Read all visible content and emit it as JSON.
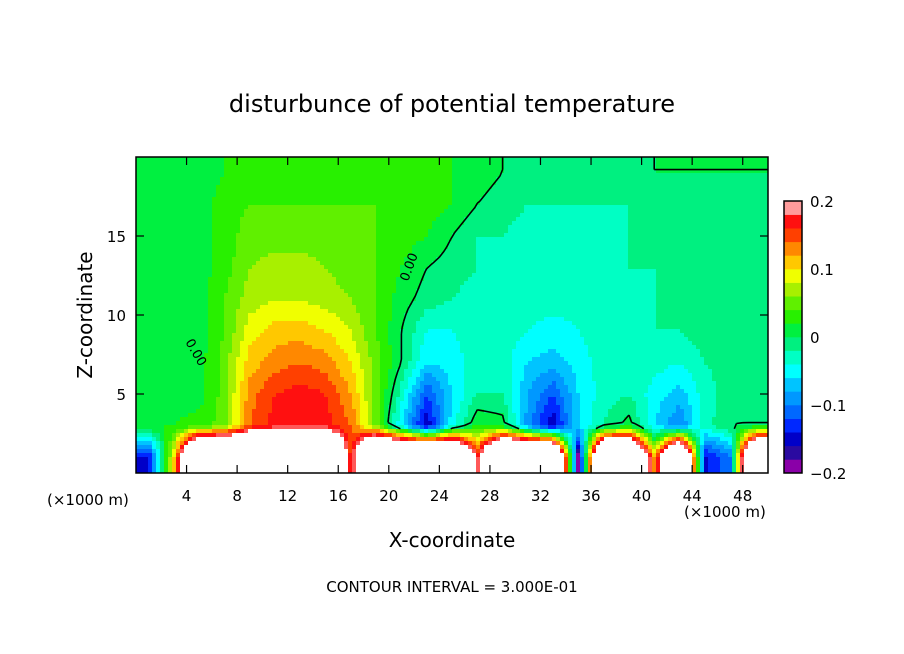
{
  "chart_data": {
    "type": "heatmap",
    "title": "disturbunce of potential temperature",
    "xlabel": "X-coordinate",
    "ylabel": "Z-coordinate",
    "x_unit": "(×1000 m)",
    "y_unit": "(×1000 m)",
    "xlim": [
      0,
      50
    ],
    "ylim": [
      0,
      20
    ],
    "x_ticks": [
      4,
      8,
      12,
      16,
      20,
      24,
      28,
      32,
      36,
      40,
      44,
      48
    ],
    "x_tick_labels": [
      "4",
      "8",
      "12",
      "16",
      "20",
      "24",
      "28",
      "32",
      "36",
      "40",
      "44",
      "48"
    ],
    "y_ticks": [
      5,
      10,
      15
    ],
    "y_tick_labels": [
      "5",
      "10",
      "15"
    ],
    "footer": "CONTOUR INTERVAL = 3.000E-01",
    "contour_line_label": "0.00",
    "colorbar": {
      "min": -0.2,
      "max": 0.2,
      "step": 0.02,
      "tick_values": [
        0.2,
        0.1,
        0,
        -0.1,
        -0.2
      ],
      "tick_labels": [
        "0.2",
        "0.1",
        "0",
        "−0.1",
        "−0.2"
      ],
      "colors": [
        "#8a00a8",
        "#2a0aa0",
        "#0000c8",
        "#0028ff",
        "#0068ff",
        "#0098ff",
        "#00c4ff",
        "#00ffff",
        "#00ffc4",
        "#00f080",
        "#00f040",
        "#28f000",
        "#60f000",
        "#a8f000",
        "#f0ff00",
        "#ffc800",
        "#ff8800",
        "#ff4000",
        "#ff1010",
        "#ff5858",
        "#ff9c9c"
      ]
    },
    "grid_x": [
      1,
      3,
      5,
      7,
      9,
      11,
      13,
      15,
      17,
      19,
      21,
      23,
      25,
      27,
      29,
      31,
      33,
      35,
      37,
      39,
      41,
      43,
      45,
      47,
      49
    ],
    "grid_z": [
      19,
      17,
      15,
      13,
      11,
      9,
      7,
      5,
      3,
      1
    ],
    "values": [
      [
        0.01,
        0.01,
        0.01,
        0.02,
        0.03,
        0.03,
        0.03,
        0.03,
        0.03,
        0.03,
        0.03,
        0.03,
        0.02,
        0.01,
        0.0,
        -0.01,
        -0.01,
        -0.01,
        -0.01,
        -0.01,
        0,
        0,
        0,
        0,
        0
      ],
      [
        0.01,
        0.01,
        0.01,
        0.03,
        0.04,
        0.04,
        0.04,
        0.04,
        0.04,
        0.04,
        0.03,
        0.03,
        0.02,
        0.0,
        -0.01,
        -0.02,
        -0.02,
        -0.02,
        -0.02,
        -0.02,
        -0.01,
        -0.01,
        -0.01,
        -0.01,
        -0.01
      ],
      [
        0.01,
        0.01,
        0.01,
        0.03,
        0.05,
        0.05,
        0.05,
        0.05,
        0.05,
        0.04,
        0.03,
        0.02,
        0.0,
        -0.02,
        -0.02,
        -0.03,
        -0.03,
        -0.03,
        -0.03,
        -0.02,
        -0.02,
        -0.01,
        -0.01,
        -0.01,
        -0.01
      ],
      [
        0.01,
        0.01,
        0.01,
        0.03,
        0.06,
        0.07,
        0.07,
        0.06,
        0.05,
        0.04,
        0.02,
        0.0,
        -0.01,
        -0.02,
        -0.03,
        -0.03,
        -0.03,
        -0.03,
        -0.03,
        -0.02,
        -0.02,
        -0.01,
        -0.01,
        -0.01,
        -0.01
      ],
      [
        0.01,
        0.01,
        0.01,
        0.04,
        0.07,
        0.08,
        0.08,
        0.07,
        0.06,
        0.04,
        0.01,
        -0.01,
        -0.02,
        -0.03,
        -0.03,
        -0.03,
        -0.03,
        -0.03,
        -0.03,
        -0.03,
        -0.02,
        -0.02,
        -0.01,
        -0.01,
        -0.01
      ],
      [
        0.01,
        0.01,
        0.01,
        0.04,
        0.09,
        0.11,
        0.11,
        0.1,
        0.08,
        0.04,
        0.0,
        -0.04,
        -0.04,
        -0.03,
        -0.03,
        -0.04,
        -0.05,
        -0.04,
        -0.03,
        -0.03,
        -0.02,
        -0.02,
        -0.01,
        -0.01,
        -0.01
      ],
      [
        0.01,
        0.01,
        0.01,
        0.05,
        0.11,
        0.13,
        0.14,
        0.13,
        0.1,
        0.05,
        0.0,
        -0.06,
        -0.05,
        -0.03,
        -0.03,
        -0.06,
        -0.07,
        -0.05,
        -0.03,
        -0.02,
        -0.03,
        -0.04,
        -0.02,
        -0.01,
        -0.01
      ],
      [
        0.01,
        0.01,
        0.01,
        0.05,
        0.13,
        0.16,
        0.17,
        0.16,
        0.12,
        0.05,
        -0.03,
        -0.12,
        -0.06,
        -0.02,
        -0.02,
        -0.08,
        -0.12,
        -0.06,
        -0.03,
        -0.02,
        -0.05,
        -0.07,
        -0.03,
        -0.01,
        -0.01
      ],
      [
        0.02,
        0.02,
        0.03,
        0.05,
        0.14,
        0.17,
        0.17,
        0.17,
        0.14,
        0.05,
        -0.06,
        -0.16,
        -0.05,
        0.02,
        0.01,
        -0.09,
        -0.16,
        -0.06,
        -0.02,
        0.01,
        -0.06,
        -0.1,
        -0.03,
        0.0,
        0.0
      ],
      [
        -0.15,
        0.1,
        0.5,
        0.5,
        0.5,
        0.5,
        0.5,
        0.5,
        0.15,
        0.5,
        0.5,
        0.5,
        0.5,
        0.18,
        0.5,
        0.5,
        0.5,
        -0.2,
        0.5,
        0.5,
        0.12,
        0.5,
        -0.15,
        -0.1,
        0.5
      ]
    ]
  }
}
